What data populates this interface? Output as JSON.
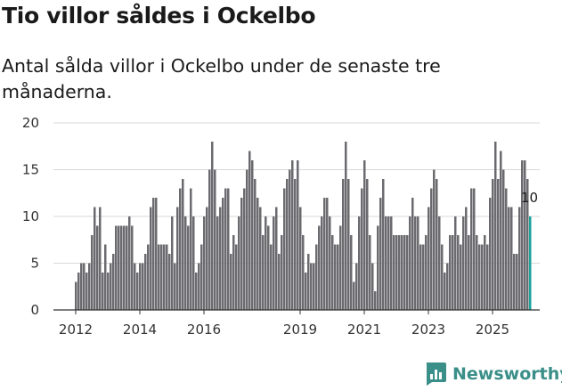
{
  "title": "Tio villor såldes i Ockelbo",
  "subtitle": "Antal sålda villor i Ockelbo under de senaste tre månaderna.",
  "brand": {
    "name": "Newsworthy",
    "color": "#3a8f88",
    "icon": "bar-chart-bubble-icon"
  },
  "colors": {
    "bar": "#6b6b6f",
    "highlight": "#1aa39a",
    "grid": "#d9d9d9",
    "axis": "#333333"
  },
  "chart_data": {
    "type": "bar",
    "title": "Tio villor såldes i Ockelbo",
    "xlabel": "",
    "ylabel": "",
    "ylim": [
      0,
      20
    ],
    "yticks": [
      0,
      5,
      10,
      15,
      20
    ],
    "xticks": [
      {
        "label": "2012",
        "index": 0
      },
      {
        "label": "2014",
        "index": 24
      },
      {
        "label": "2016",
        "index": 48
      },
      {
        "label": "2019",
        "index": 84
      },
      {
        "label": "2021",
        "index": 108
      },
      {
        "label": "2023",
        "index": 132
      },
      {
        "label": "2025",
        "index": 156
      }
    ],
    "start": "2012-01",
    "values": [
      3,
      4,
      5,
      5,
      4,
      5,
      8,
      11,
      9,
      11,
      4,
      7,
      4,
      5,
      6,
      9,
      9,
      9,
      9,
      9,
      10,
      9,
      5,
      4,
      5,
      5,
      6,
      7,
      11,
      12,
      12,
      7,
      7,
      7,
      7,
      6,
      10,
      5,
      11,
      13,
      14,
      10,
      9,
      13,
      10,
      4,
      5,
      7,
      10,
      11,
      15,
      18,
      15,
      10,
      11,
      12,
      13,
      13,
      6,
      8,
      7,
      10,
      12,
      13,
      15,
      17,
      16,
      14,
      12,
      11,
      8,
      10,
      9,
      7,
      10,
      11,
      6,
      8,
      13,
      14,
      15,
      16,
      14,
      16,
      11,
      8,
      4,
      6,
      5,
      5,
      7,
      9,
      10,
      12,
      12,
      10,
      8,
      7,
      7,
      9,
      14,
      18,
      14,
      8,
      3,
      5,
      10,
      13,
      16,
      14,
      8,
      5,
      2,
      9,
      12,
      14,
      10,
      10,
      10,
      8,
      8,
      8,
      8,
      8,
      8,
      10,
      12,
      10,
      10,
      7,
      7,
      8,
      11,
      13,
      15,
      14,
      10,
      7,
      4,
      5,
      8,
      8,
      10,
      8,
      7,
      10,
      11,
      8,
      13,
      13,
      8,
      7,
      7,
      8,
      7,
      12,
      14,
      18,
      14,
      17,
      15,
      13,
      11,
      11,
      6,
      6,
      11,
      16,
      16,
      14,
      10
    ],
    "highlight_last": 1,
    "annotation": "10"
  }
}
